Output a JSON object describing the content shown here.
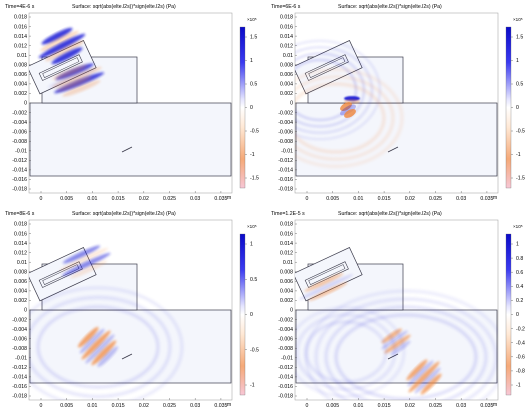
{
  "panels": [
    {
      "time": "Time=4E-6 s",
      "title": "Surface: sqrt(abs(elte.l2s))*sign(elte.l2s) (Pa)",
      "colorbar": {
        "exponent": "×10⁵",
        "ticks": [
          "1.5",
          "1",
          "0.5",
          "0",
          "-0.5",
          "-1",
          "-1.5"
        ]
      },
      "yticks": [
        "0.018",
        "0.016",
        "0.014",
        "0.012",
        "0.01",
        "0.008",
        "0.006",
        "0.004",
        "0.002",
        "0",
        "-0.002",
        "-0.004",
        "-0.006",
        "-0.008",
        "-0.01",
        "-0.012",
        "-0.014",
        "-0.016",
        "-0.018"
      ],
      "xticks": [
        "0",
        "0.005",
        "0.01",
        "0.015",
        "0.02",
        "0.025",
        "0.03",
        "0.035"
      ],
      "xunit": "m"
    },
    {
      "time": "Time=6E-6 s",
      "title": "Surface: sqrt(abs(elte.l2s))*sign(elte.l2s) (Pa)",
      "colorbar": {
        "exponent": "×10⁵",
        "ticks": [
          "1.5",
          "1",
          "0.5",
          "0",
          "-0.5",
          "-1",
          "-1.5"
        ]
      },
      "yticks": [
        "0.018",
        "0.016",
        "0.014",
        "0.012",
        "0.01",
        "0.008",
        "0.006",
        "0.004",
        "0.002",
        "0",
        "-0.002",
        "-0.004",
        "-0.006",
        "-0.008",
        "-0.01",
        "-0.012",
        "-0.014",
        "-0.016",
        "-0.018"
      ],
      "xticks": [
        "0",
        "0.005",
        "0.01",
        "0.015",
        "0.02",
        "0.025",
        "0.03",
        "0.035"
      ],
      "xunit": "m"
    },
    {
      "time": "Time=8E-6 s",
      "title": "Surface: sqrt(abs(elte.l2s))*sign(elte.l2s) (Pa)",
      "colorbar": {
        "exponent": "×10⁵",
        "ticks": [
          "1",
          "0.5",
          "0",
          "-0.5",
          "-1"
        ]
      },
      "yticks": [
        "0.018",
        "0.016",
        "0.014",
        "0.012",
        "0.01",
        "0.008",
        "0.006",
        "0.004",
        "0.002",
        "0",
        "-0.002",
        "-0.004",
        "-0.006",
        "-0.008",
        "-0.01",
        "-0.012",
        "-0.014",
        "-0.016",
        "-0.018"
      ],
      "xticks": [
        "0",
        "0.005",
        "0.01",
        "0.015",
        "0.02",
        "0.025",
        "0.03",
        "0.035"
      ],
      "xunit": "m"
    },
    {
      "time": "Time=1.2E-5 s",
      "title": "Surface: sqrt(abs(elte.l2s))*sign(elte.l2s) (Pa)",
      "colorbar": {
        "exponent": "×10⁵",
        "ticks": [
          "1",
          "0.8",
          "0.6",
          "0.4",
          "0.2",
          "0",
          "-0.2",
          "-0.4",
          "-0.6",
          "-0.8",
          "-1"
        ]
      },
      "yticks": [
        "0.018",
        "0.016",
        "0.014",
        "0.012",
        "0.01",
        "0.008",
        "0.006",
        "0.004",
        "0.002",
        "0",
        "-0.002",
        "-0.004",
        "-0.006",
        "-0.008",
        "-0.01",
        "-0.012",
        "-0.014",
        "-0.016",
        "-0.018"
      ],
      "xticks": [
        "0",
        "0.005",
        "0.01",
        "0.015",
        "0.02",
        "0.025",
        "0.03",
        "0.035"
      ],
      "xunit": "m"
    }
  ],
  "colors": {
    "positive": "#1a1ad6",
    "negative": "#f0873c",
    "neutral": "#ffffff",
    "outline": "#3a3a4a"
  }
}
